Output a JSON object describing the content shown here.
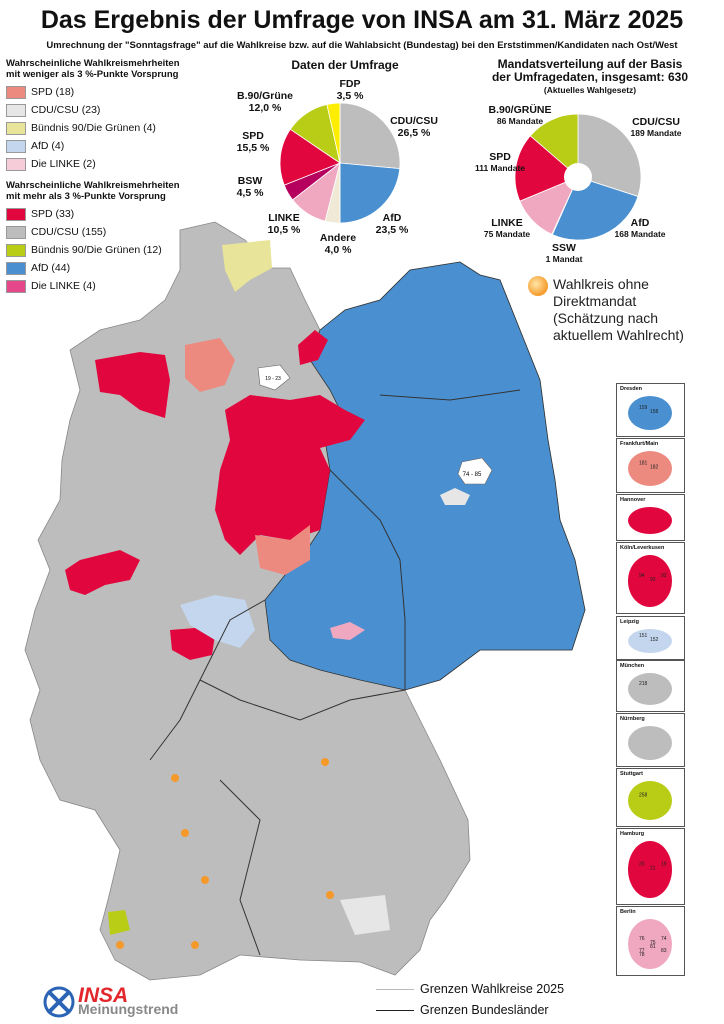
{
  "title": "Das Ergebnis der Umfrage von INSA am 31. März 2025",
  "subtitle": "Umrechnung der \"Sonntagsfrage\" auf die Wahlkreise bzw. auf die Wahlabsicht (Bundestag) bei den Erststimmen/Kandidaten nach Ost/West",
  "legend_low": {
    "heading_line1": "Wahrscheinliche Wahlkreismehrheiten",
    "heading_line2": "mit weniger als 3 %-Punkte Vorsprung",
    "items": [
      {
        "label": "SPD (18)",
        "color": "#ec8a80"
      },
      {
        "label": "CDU/CSU (23)",
        "color": "#e6e6e6"
      },
      {
        "label": "Bündnis 90/Die Grünen (4)",
        "color": "#e8e49a"
      },
      {
        "label": "AfD (4)",
        "color": "#c3d6ee"
      },
      {
        "label": "Die LINKE (2)",
        "color": "#f6ccd8"
      }
    ]
  },
  "legend_high": {
    "heading_line1": "Wahrscheinliche Wahlkreismehrheiten",
    "heading_line2": "mit mehr als 3 %-Punkte Vorsprung",
    "items": [
      {
        "label": "SPD (33)",
        "color": "#e2063e"
      },
      {
        "label": "CDU/CSU (155)",
        "color": "#bdbdbd"
      },
      {
        "label": "Bündnis 90/Die Grünen (12)",
        "color": "#b9cc16"
      },
      {
        "label": "AfD (44)",
        "color": "#4a90d0"
      },
      {
        "label": "Die LINKE (4)",
        "color": "#e4488a"
      }
    ]
  },
  "poll_chart": {
    "title": "Daten der Umfrage",
    "slices": [
      {
        "name": "CDU/CSU",
        "value": 26.5,
        "label": "26,5 %",
        "color": "#bdbdbd"
      },
      {
        "name": "AfD",
        "value": 23.5,
        "label": "23,5 %",
        "color": "#4a90d0"
      },
      {
        "name": "Andere",
        "value": 4.0,
        "label": "4,0 %",
        "color": "#efe9d6"
      },
      {
        "name": "LINKE",
        "value": 10.5,
        "label": "10,5 %",
        "color": "#f0a7c0"
      },
      {
        "name": "BSW",
        "value": 4.5,
        "label": "4,5 %",
        "color": "#b5005e"
      },
      {
        "name": "SPD",
        "value": 15.5,
        "label": "15,5 %",
        "color": "#e2063e"
      },
      {
        "name": "B.90/Grüne",
        "value": 12.0,
        "label": "12,0 %",
        "color": "#b9cc16"
      },
      {
        "name": "FDP",
        "value": 3.5,
        "label": "3,5 %",
        "color": "#ffed00"
      }
    ]
  },
  "seat_chart": {
    "title_line1": "Mandatsverteilung auf der Basis",
    "title_line2": "der Umfragedaten, insgesamt: 630",
    "title_line3": "(Aktuelles Wahlgesetz)",
    "slices": [
      {
        "name": "CDU/CSU",
        "value": 189,
        "label": "189 Mandate",
        "color": "#bdbdbd"
      },
      {
        "name": "AfD",
        "value": 168,
        "label": "168 Mandate",
        "color": "#4a90d0"
      },
      {
        "name": "SSW",
        "value": 1,
        "label": "1 Mandat",
        "color": "#1a3c8c"
      },
      {
        "name": "LINKE",
        "value": 75,
        "label": "75 Mandate",
        "color": "#f0a7c0"
      },
      {
        "name": "SPD",
        "value": 111,
        "label": "111 Mandate",
        "color": "#e2063e"
      },
      {
        "name": "B.90/GRÜNE",
        "value": 86,
        "label": "86 Mandate",
        "color": "#b9cc16"
      }
    ]
  },
  "no_mandate_note": [
    "Wahlkreis ohne",
    "Direktmandat",
    "(Schätzung nach",
    "aktuellem Wahlrecht)"
  ],
  "insets": [
    {
      "name": "Dresden",
      "numbers": [
        "159",
        "158"
      ]
    },
    {
      "name": "Frankfurt/Main",
      "numbers": [
        "181",
        "182"
      ]
    },
    {
      "name": "Hannover",
      "numbers": []
    },
    {
      "name": "Köln/Leverkusen",
      "numbers": [
        "94",
        "93",
        "92"
      ]
    },
    {
      "name": "Leipzig",
      "numbers": [
        "151",
        "152"
      ]
    },
    {
      "name": "München",
      "numbers": [
        "218"
      ]
    },
    {
      "name": "Nürnberg",
      "numbers": []
    },
    {
      "name": "Stuttgart",
      "numbers": [
        "258"
      ]
    },
    {
      "name": "Hamburg",
      "numbers": [
        "20",
        "21",
        "19"
      ]
    },
    {
      "name": "Berlin",
      "numbers": [
        "76",
        "75",
        "74",
        "77",
        "81",
        "83",
        "78"
      ]
    }
  ],
  "map_labels": {
    "berlin": "74 - 85",
    "bremen": "19 - 23"
  },
  "bottom_legend": {
    "wahlkreise": "Grenzen Wahlkreise 2025",
    "bundeslaender": "Grenzen Bundesländer"
  },
  "logo": {
    "brand": "INSA",
    "tagline": "Meinungstrend"
  }
}
